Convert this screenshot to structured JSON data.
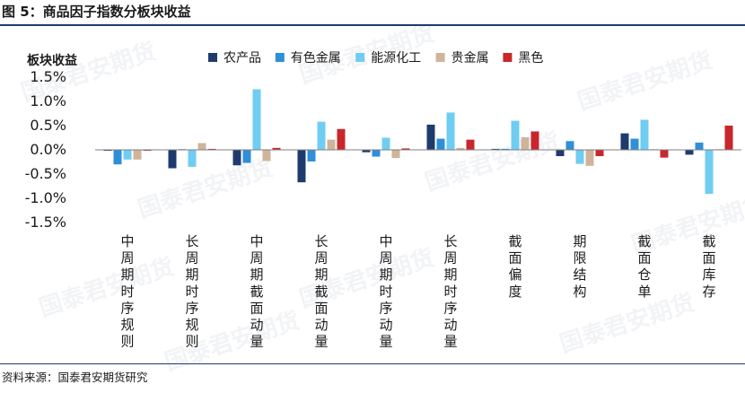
{
  "figure": {
    "title": "图 5：商品因子指数分板块收益",
    "source": "资料来源：国泰君安期货研究",
    "watermark": "国泰君安期货"
  },
  "chart_data": {
    "type": "bar",
    "ylabel": "板块收益",
    "ylim": [
      -1.5,
      1.5
    ],
    "yticks": [
      1.5,
      1.0,
      0.5,
      0.0,
      -0.5,
      -1.0,
      -1.5
    ],
    "ytick_labels": [
      "1.5%",
      "1.0%",
      "0.5%",
      "0.0%",
      "-0.5%",
      "-1.0%",
      "-1.5%"
    ],
    "grid": false,
    "legend_position": "top",
    "categories": [
      "中周期时序规则",
      "长周期时序规则",
      "中周期截面动量",
      "长周期截面动量",
      "中周期时序动量",
      "长周期时序动量",
      "截面偏度",
      "期限结构",
      "截面仓单",
      "截面库存"
    ],
    "series": [
      {
        "name": "农产品",
        "color": "#1f3b6e",
        "values": [
          -0.02,
          -0.38,
          -0.32,
          -0.67,
          -0.05,
          0.52,
          0.02,
          -0.13,
          0.34,
          -0.1
        ]
      },
      {
        "name": "有色金属",
        "color": "#2f8fd8",
        "values": [
          -0.3,
          0.0,
          -0.27,
          -0.24,
          -0.14,
          0.23,
          0.02,
          0.18,
          0.23,
          0.15
        ]
      },
      {
        "name": "能源化工",
        "color": "#6fcdf2",
        "values": [
          -0.2,
          -0.35,
          1.25,
          0.58,
          0.25,
          0.77,
          0.6,
          -0.29,
          0.62,
          -0.91
        ]
      },
      {
        "name": "贵金属",
        "color": "#cfb49a",
        "values": [
          -0.2,
          0.14,
          -0.23,
          0.21,
          -0.17,
          0.04,
          0.26,
          -0.33,
          0.0,
          0.0
        ]
      },
      {
        "name": "黑色",
        "color": "#c8272d",
        "values": [
          -0.02,
          0.02,
          0.04,
          0.43,
          0.03,
          0.21,
          0.38,
          -0.13,
          -0.16,
          0.5
        ]
      }
    ]
  }
}
